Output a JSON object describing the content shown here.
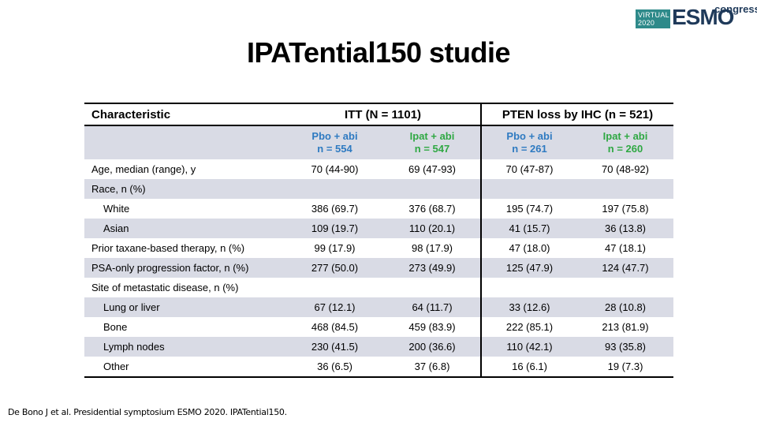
{
  "logo": {
    "virtual": "VIRTUAL",
    "year": "2020",
    "esmo": "ESMO",
    "congress": "congress"
  },
  "title": "IPATential150 studie",
  "table": {
    "header": {
      "characteristic": "Characteristic",
      "itt": "ITT (N = 1101)",
      "pten": "PTEN loss by IHC (n = 521)"
    },
    "subheader": [
      {
        "arm": "Pbo + abi",
        "n": "n = 554",
        "color": "#2e7ac1"
      },
      {
        "arm": "Ipat + abi",
        "n": "n = 547",
        "color": "#2fa843"
      },
      {
        "arm": "Pbo + abi",
        "n": "n = 261",
        "color": "#2e7ac1"
      },
      {
        "arm": "Ipat + abi",
        "n": "n = 260",
        "color": "#2fa843"
      }
    ],
    "rows": [
      {
        "label": "Age, median (range), y",
        "values": [
          "70 (44-90)",
          "69 (47-93)",
          "70 (47-87)",
          "70 (48-92)"
        ]
      },
      {
        "label": "Race, n (%)",
        "values": [
          "",
          "",
          "",
          ""
        ]
      },
      {
        "label": "White",
        "values": [
          "386 (69.7)",
          "376 (68.7)",
          "195 (74.7)",
          "197 (75.8)"
        ]
      },
      {
        "label": "Asian",
        "values": [
          "109 (19.7)",
          "110 (20.1)",
          "41 (15.7)",
          "36 (13.8)"
        ]
      },
      {
        "label": "Prior taxane-based therapy, n (%)",
        "values": [
          "99 (17.9)",
          "98 (17.9)",
          "47 (18.0)",
          "47 (18.1)"
        ]
      },
      {
        "label": "PSA-only progression factor, n (%)",
        "values": [
          "277 (50.0)",
          "273 (49.9)",
          "125 (47.9)",
          "124 (47.7)"
        ]
      },
      {
        "label": "Site of metastatic disease, n (%)",
        "values": [
          "",
          "",
          "",
          ""
        ]
      },
      {
        "label": "Lung or liver",
        "values": [
          "67 (12.1)",
          "64 (11.7)",
          "33 (12.6)",
          "28 (10.8)"
        ]
      },
      {
        "label": "Bone",
        "values": [
          "468 (84.5)",
          "459 (83.9)",
          "222 (85.1)",
          "213 (81.9)"
        ]
      },
      {
        "label": "Lymph nodes",
        "values": [
          "230 (41.5)",
          "200 (36.6)",
          "110 (42.1)",
          "93 (35.8)"
        ]
      },
      {
        "label": "Other",
        "values": [
          "36 (6.5)",
          "37 (6.8)",
          "16 (6.1)",
          "19 (7.3)"
        ]
      }
    ]
  },
  "footnote": "De Bono J et al. Presidential symptosium ESMO 2020. IPATential150."
}
